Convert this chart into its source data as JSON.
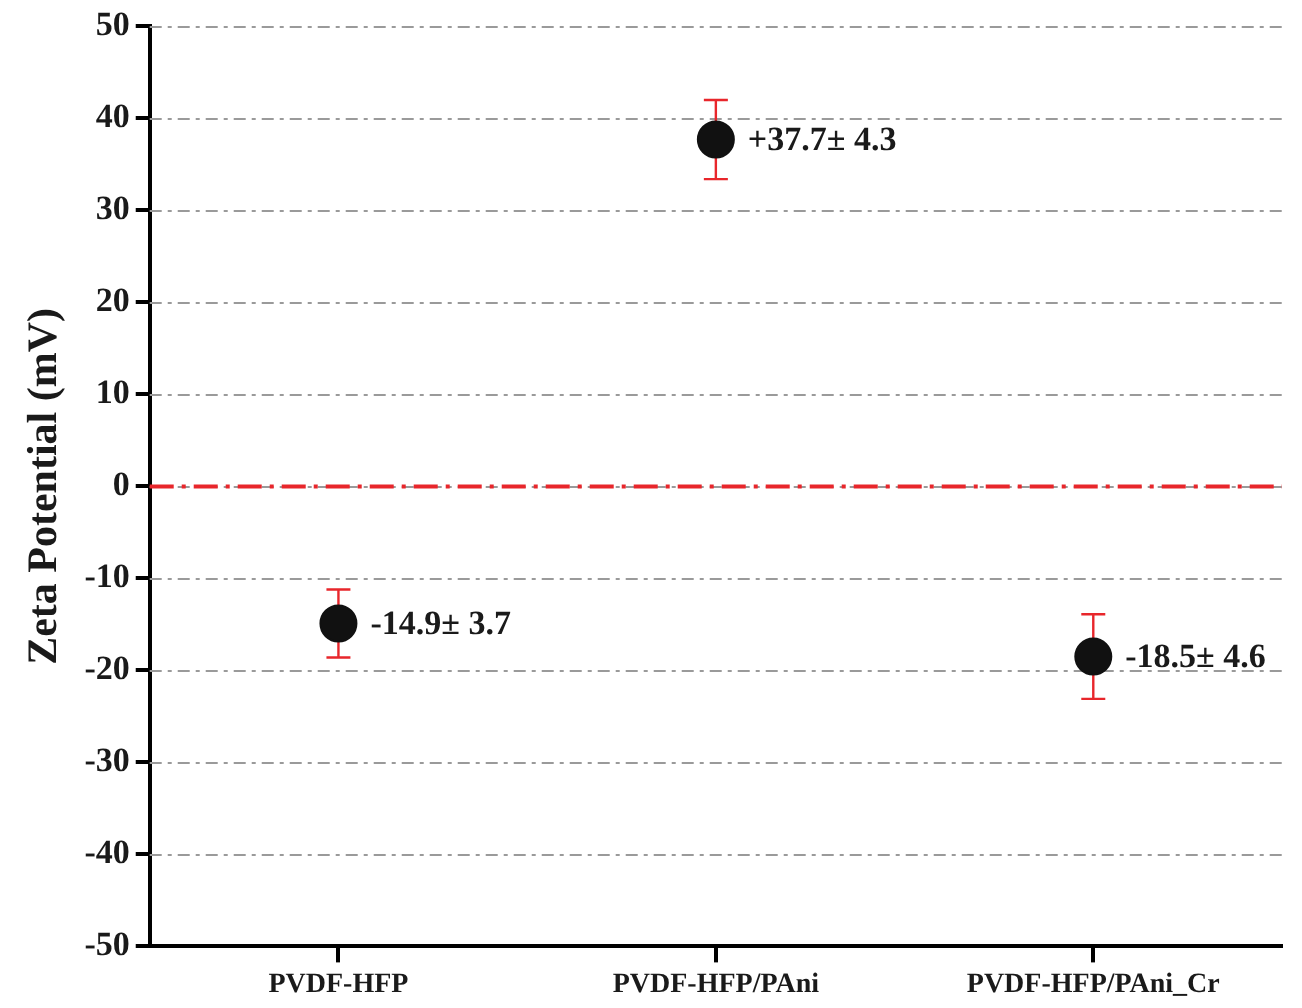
{
  "chart_data": {
    "type": "scatter",
    "ylabel": "Zeta Potential (mV)",
    "categories": [
      "PVDF-HFP",
      "PVDF-HFP/PAni",
      "PVDF-HFP/PAni_Cr"
    ],
    "values": [
      -14.9,
      37.7,
      -18.5
    ],
    "errors": [
      3.7,
      4.3,
      4.6
    ],
    "value_labels": [
      "-14.9± 3.7",
      "+37.7± 4.3",
      "-18.5± 4.6"
    ],
    "color": "#111111",
    "marker": "circle",
    "ylim": [
      -50,
      50
    ],
    "yticks": [
      -50,
      -40,
      -30,
      -20,
      -10,
      0,
      10,
      20,
      30,
      40,
      50
    ],
    "grid": "y",
    "ref_lines": [
      {
        "axis": "y",
        "value": 0,
        "color": "#e8262b",
        "line_style": "dashdot"
      }
    ]
  }
}
